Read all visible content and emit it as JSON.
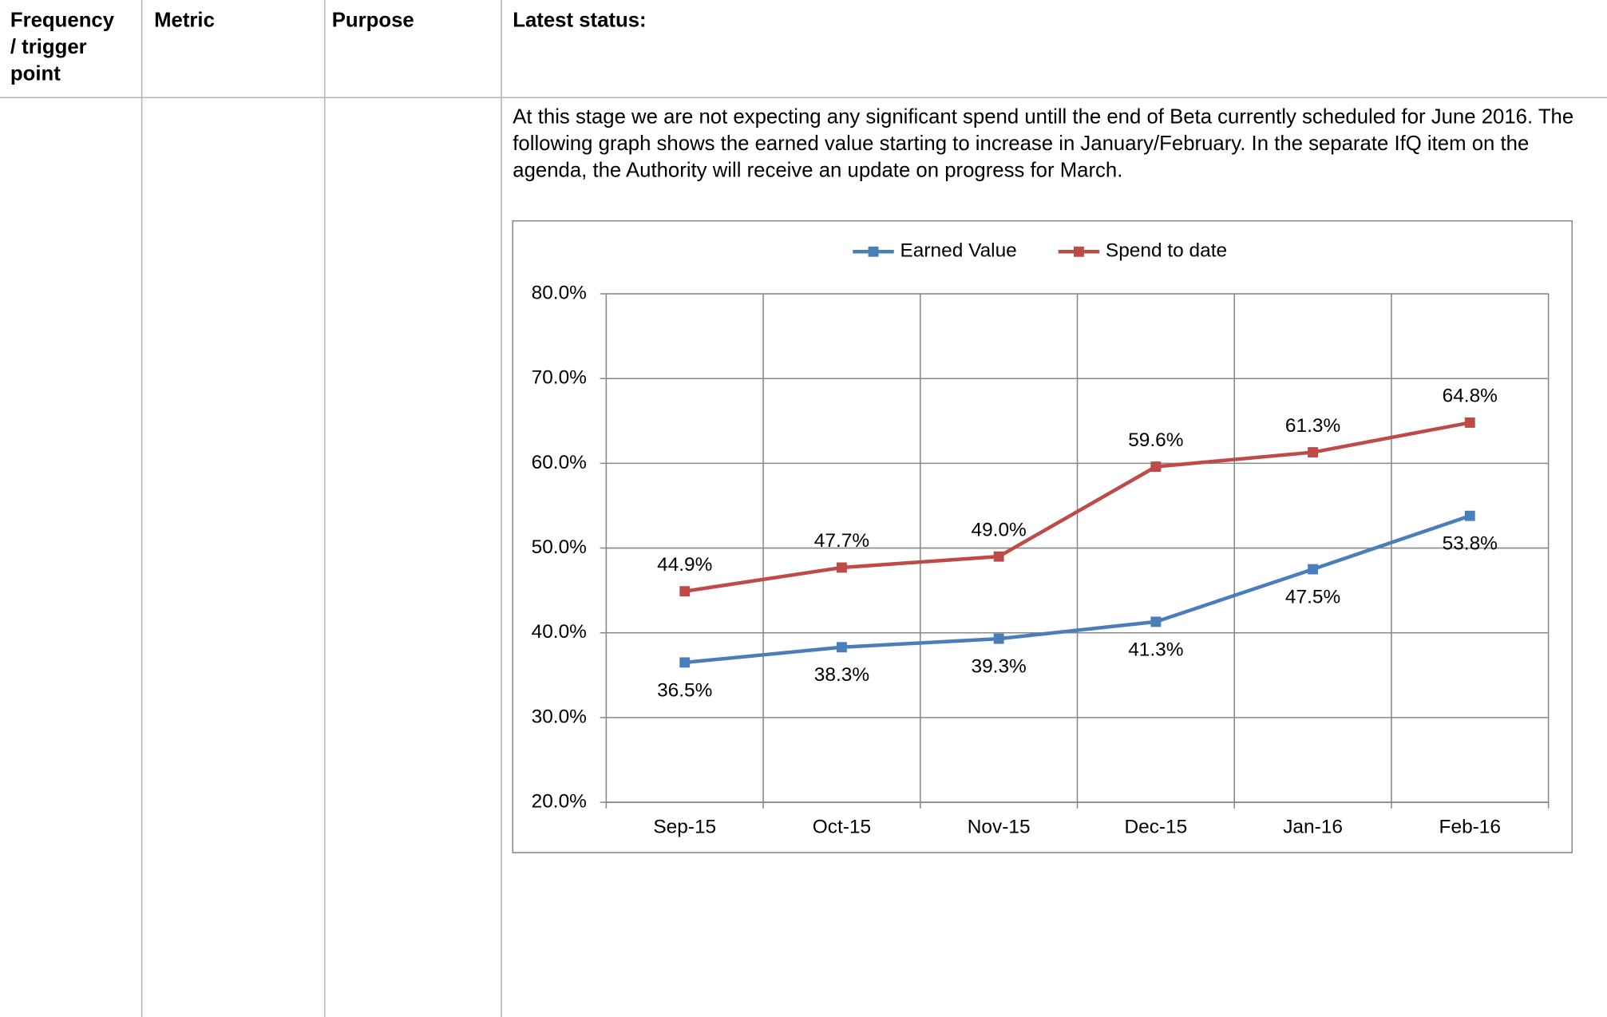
{
  "table": {
    "headers": [
      "Frequency / trigger point",
      "Metric",
      "Purpose",
      "Latest status:"
    ],
    "status_text": "At this stage we are not expecting any significant spend untill the end of Beta currently scheduled for June 2016. The following graph shows the earned value starting to increase in January/February. In the separate IfQ item on the agenda, the Authority will receive an update on progress for March."
  },
  "chart_data": {
    "type": "line",
    "categories": [
      "Sep-15",
      "Oct-15",
      "Nov-15",
      "Dec-15",
      "Jan-16",
      "Feb-16"
    ],
    "series": [
      {
        "name": "Earned Value",
        "color": "#4a7ebb",
        "values": [
          36.5,
          38.3,
          39.3,
          41.3,
          47.5,
          53.8
        ],
        "value_labels": [
          "36.5%",
          "38.3%",
          "39.3%",
          "41.3%",
          "47.5%",
          "53.8%"
        ]
      },
      {
        "name": "Spend to date",
        "color": "#be4b48",
        "values": [
          44.9,
          47.7,
          49.0,
          59.6,
          61.3,
          64.8
        ],
        "value_labels": [
          "44.9%",
          "47.7%",
          "49.0%",
          "59.6%",
          "61.3%",
          "64.8%"
        ]
      }
    ],
    "ylim": [
      20,
      80
    ],
    "yticks": [
      {
        "value": 20,
        "label": "20.0%"
      },
      {
        "value": 30,
        "label": "30.0%"
      },
      {
        "value": 40,
        "label": "40.0%"
      },
      {
        "value": 50,
        "label": "50.0%"
      },
      {
        "value": 60,
        "label": "60.0%"
      },
      {
        "value": 70,
        "label": "70.0%"
      },
      {
        "value": 80,
        "label": "80.0%"
      }
    ],
    "grid": true,
    "legend": "top"
  }
}
